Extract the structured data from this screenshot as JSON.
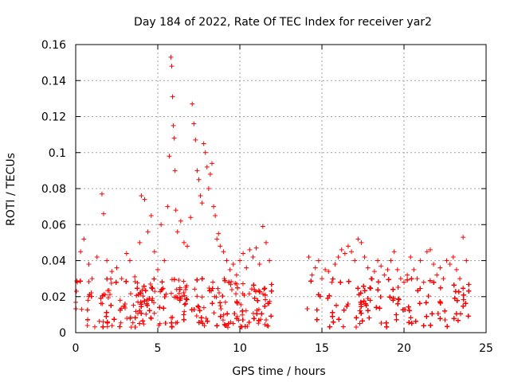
{
  "chart_data": {
    "type": "scatter",
    "title": "Day 184 of 2022, Rate Of TEC Index for receiver yar2",
    "xlabel": "GPS time / hours",
    "ylabel": "ROTI / TECUs",
    "xlim": [
      0,
      25
    ],
    "ylim": [
      0,
      0.16
    ],
    "x_ticks": [
      0,
      5,
      10,
      15,
      20,
      25
    ],
    "x_tick_labels": [
      "0",
      "5",
      "10",
      "15",
      "20",
      "25"
    ],
    "y_ticks": [
      0,
      0.02,
      0.04,
      0.06,
      0.08,
      0.1,
      0.12,
      0.14,
      0.16
    ],
    "y_tick_labels": [
      "0",
      "0.02",
      "0.04",
      "0.06",
      "0.08",
      "0.1",
      "0.12",
      "0.14",
      "0.16"
    ],
    "grid": true,
    "marker": "+",
    "series": [
      {
        "name": "ROTI",
        "color": "#ff0000",
        "x": [
          0.1,
          0.3,
          0.5,
          0.8,
          1.0,
          1.3,
          1.6,
          1.7,
          1.9,
          2.2,
          2.5,
          2.8,
          3.1,
          3.3,
          3.6,
          3.9,
          4.0,
          4.2,
          4.4,
          4.6,
          4.8,
          5.0,
          5.2,
          5.4,
          5.6,
          5.7,
          5.8,
          5.85,
          5.9,
          5.95,
          6.0,
          6.05,
          6.1,
          6.2,
          6.4,
          6.6,
          6.8,
          7.0,
          7.1,
          7.2,
          7.3,
          7.4,
          7.5,
          7.6,
          7.7,
          7.8,
          7.9,
          8.0,
          8.1,
          8.2,
          8.3,
          8.4,
          8.5,
          8.6,
          8.7,
          8.8,
          9.0,
          9.2,
          9.4,
          9.6,
          9.8,
          10.0,
          10.2,
          10.4,
          10.6,
          10.8,
          11.0,
          11.2,
          11.4,
          11.6,
          11.8,
          14.2,
          14.4,
          14.6,
          14.8,
          15.0,
          15.2,
          15.4,
          15.6,
          15.8,
          16.0,
          16.2,
          16.4,
          16.6,
          16.8,
          17.0,
          17.2,
          17.4,
          17.6,
          17.8,
          18.0,
          18.2,
          18.4,
          18.6,
          18.8,
          19.0,
          19.2,
          19.4,
          19.6,
          19.8,
          20.0,
          20.2,
          20.4,
          20.6,
          20.8,
          21.0,
          21.2,
          21.4,
          21.6,
          21.8,
          22.0,
          22.2,
          22.4,
          22.6,
          22.8,
          23.0,
          23.2,
          23.4,
          23.6,
          23.8
        ],
        "y": [
          0.028,
          0.045,
          0.052,
          0.038,
          0.03,
          0.042,
          0.077,
          0.066,
          0.04,
          0.034,
          0.036,
          0.03,
          0.044,
          0.04,
          0.031,
          0.05,
          0.076,
          0.074,
          0.056,
          0.065,
          0.045,
          0.035,
          0.06,
          0.04,
          0.07,
          0.098,
          0.153,
          0.148,
          0.131,
          0.115,
          0.108,
          0.09,
          0.068,
          0.056,
          0.062,
          0.05,
          0.048,
          0.064,
          0.127,
          0.116,
          0.107,
          0.09,
          0.085,
          0.076,
          0.072,
          0.105,
          0.1,
          0.092,
          0.08,
          0.088,
          0.094,
          0.07,
          0.065,
          0.052,
          0.055,
          0.048,
          0.045,
          0.04,
          0.035,
          0.038,
          0.032,
          0.04,
          0.044,
          0.036,
          0.046,
          0.042,
          0.047,
          0.038,
          0.059,
          0.05,
          0.04,
          0.042,
          0.032,
          0.036,
          0.04,
          0.03,
          0.035,
          0.034,
          0.028,
          0.038,
          0.042,
          0.046,
          0.044,
          0.048,
          0.045,
          0.04,
          0.052,
          0.05,
          0.042,
          0.036,
          0.03,
          0.034,
          0.04,
          0.037,
          0.032,
          0.035,
          0.04,
          0.045,
          0.035,
          0.03,
          0.028,
          0.032,
          0.042,
          0.035,
          0.03,
          0.04,
          0.028,
          0.045,
          0.046,
          0.038,
          0.032,
          0.036,
          0.03,
          0.04,
          0.038,
          0.042,
          0.035,
          0.03,
          0.053,
          0.04
        ]
      }
    ],
    "dense_band": {
      "description": "dense cloud of measurements",
      "segments": [
        [
          0,
          12
        ],
        [
          14.1,
          24
        ]
      ],
      "y_min": 0.003,
      "y_max": 0.03
    }
  }
}
